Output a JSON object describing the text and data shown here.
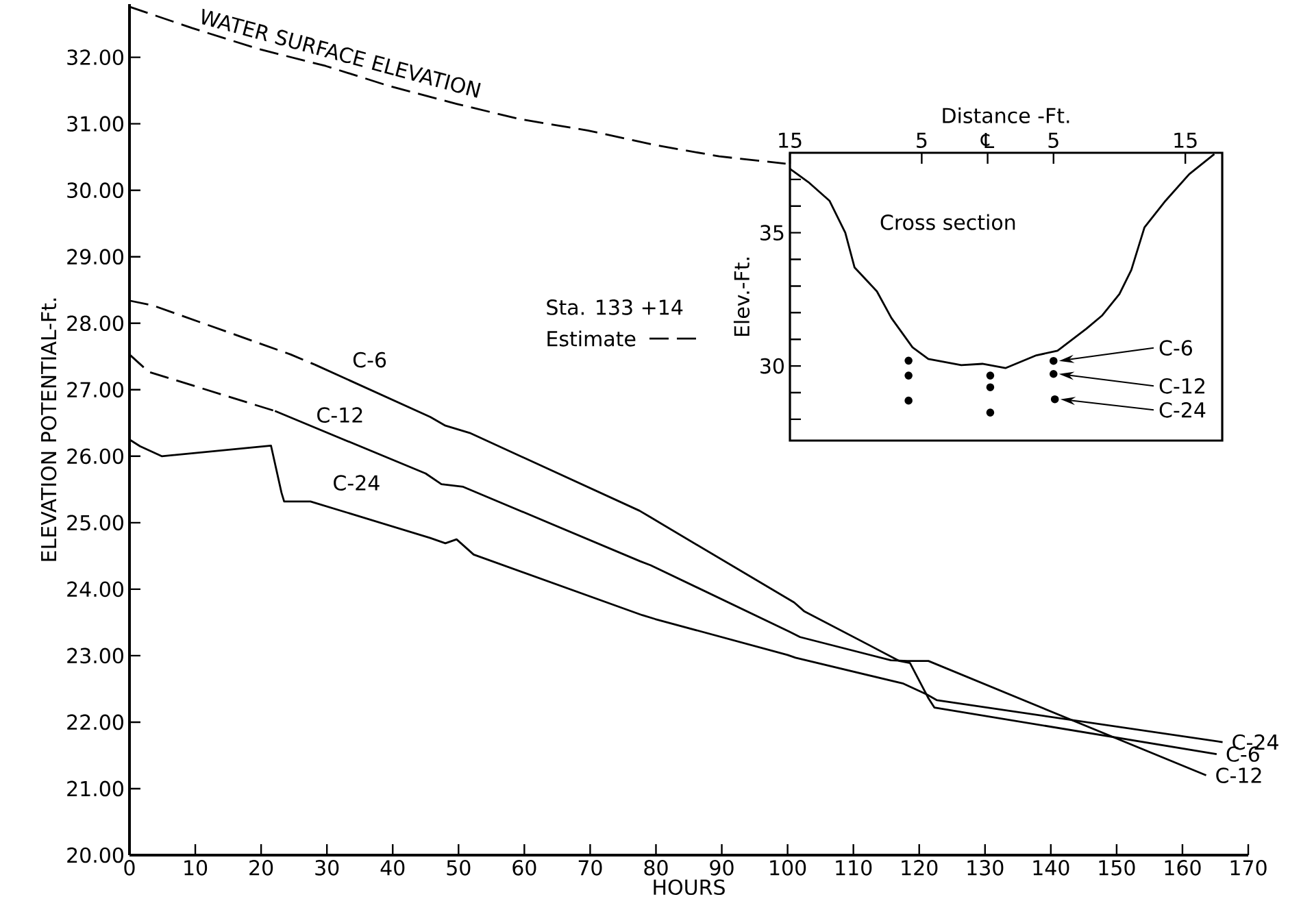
{
  "chart_data": [
    {
      "type": "line",
      "xlabel": "HOURS",
      "ylabel": "ELEVATION POTENTIAL-Ft.",
      "xlim": [
        0,
        170
      ],
      "ylim": [
        20,
        32.8
      ],
      "xticks": [
        0,
        10,
        20,
        30,
        40,
        50,
        60,
        70,
        80,
        90,
        100,
        110,
        120,
        130,
        140,
        150,
        160,
        170
      ],
      "yticks": [
        {
          "value": 20,
          "label": "20.00"
        },
        {
          "value": 21,
          "label": "21.00"
        },
        {
          "value": 22,
          "label": "22.00"
        },
        {
          "value": 23,
          "label": "23.00"
        },
        {
          "value": 24,
          "label": "24.00"
        },
        {
          "value": 25,
          "label": "25.00"
        },
        {
          "value": 26,
          "label": "26.00"
        },
        {
          "value": 27,
          "label": "27.00"
        },
        {
          "value": 28,
          "label": "28.00"
        },
        {
          "value": 29,
          "label": "29.00"
        },
        {
          "value": 30,
          "label": "30.00"
        },
        {
          "value": 31,
          "label": "31.00"
        },
        {
          "value": 32,
          "label": "32.00"
        }
      ],
      "series": [
        {
          "name": "WATER SURFACE ELEVATION",
          "color": "#000000",
          "line_style": "dashed",
          "x": [
            0,
            9.5,
            19.8,
            29.8,
            39.4,
            49.7,
            59.3,
            69.6,
            79.9,
            89.6,
            99.7
          ],
          "values": [
            32.76,
            32.44,
            32.12,
            31.87,
            31.57,
            31.3,
            31.07,
            30.9,
            30.68,
            30.51,
            30.4
          ]
        },
        {
          "color": "#000000",
          "line_style": "dashed",
          "x": [
            0,
            3.5,
            24.5,
            28.1
          ],
          "values": [
            28.34,
            28.27,
            27.53,
            27.38
          ]
        },
        {
          "name": "C-6",
          "color": "#000000",
          "line_style": "solid",
          "x": [
            28.1,
            45.7,
            48.0,
            51.7,
            77.5,
            79.2,
            101.0,
            102.5,
            117.0,
            118.6,
            121.4,
            122.3,
            165.2
          ],
          "values": [
            27.38,
            26.59,
            26.46,
            26.35,
            25.18,
            25.08,
            23.8,
            23.67,
            22.92,
            22.89,
            22.36,
            22.22,
            21.52
          ]
        },
        {
          "color": "#000000",
          "line_style": "dashed",
          "x": [
            0,
            2.9,
            22.1
          ],
          "values": [
            27.53,
            27.27,
            26.68
          ]
        },
        {
          "name": "C-12",
          "color": "#000000",
          "line_style": "solid",
          "x": [
            22.1,
            45.0,
            47.4,
            50.7,
            77.6,
            79.2,
            100.3,
            101.9,
            115.7,
            118.2,
            121.4,
            163.6
          ],
          "values": [
            26.68,
            25.74,
            25.58,
            25.54,
            24.42,
            24.36,
            23.36,
            23.28,
            22.93,
            22.92,
            22.92,
            21.2
          ]
        },
        {
          "name": "C-24",
          "color": "#000000",
          "line_style": "solid",
          "x": [
            0,
            1.6,
            4.9,
            21.5,
            23.1,
            23.5,
            27.5,
            45.7,
            48.0,
            49.7,
            52.3,
            77.9,
            79.9,
            100.0,
            101.2,
            117.6,
            121.1,
            122.7,
            166.1
          ],
          "values": [
            26.25,
            26.15,
            26.0,
            26.16,
            25.45,
            25.32,
            25.32,
            24.77,
            24.69,
            24.75,
            24.52,
            23.61,
            23.55,
            23.01,
            22.97,
            22.58,
            22.42,
            22.33,
            21.7
          ]
        }
      ],
      "annotations": [
        "Sta. 133 +14",
        "Estimate",
        {
          "text": "C-24",
          "x": 166.1,
          "y": 21.7
        },
        {
          "text": "C-6",
          "x": 165.2,
          "y": 21.52
        },
        {
          "text": "C-12",
          "x": 163.6,
          "y": 21.2
        }
      ]
    },
    {
      "type": "line",
      "xlabel": "Distance -Ft.",
      "ylabel": "Elev.-Ft.",
      "xlim": [
        -15,
        17.8
      ],
      "ylim": [
        27.2,
        38
      ],
      "xticks": [
        {
          "value": -15,
          "label": "15"
        },
        {
          "value": -5,
          "label": "5"
        },
        {
          "value": 0,
          "label": "℄"
        },
        {
          "value": 5,
          "label": "5"
        },
        {
          "value": 15,
          "label": "15"
        }
      ],
      "yticks": [
        {
          "value": 28,
          "label": null
        },
        {
          "value": 29,
          "label": null
        },
        30,
        {
          "value": 31,
          "label": null
        },
        {
          "value": 32,
          "label": null
        },
        {
          "value": 33,
          "label": null
        },
        {
          "value": 34,
          "label": null
        },
        35,
        {
          "value": 36,
          "label": null
        },
        {
          "value": 37,
          "label": null
        }
      ],
      "series": [
        {
          "color": "#000000",
          "line_style": "solid",
          "x": [
            -15,
            -13.6,
            -12.0,
            -10.8,
            -10.1,
            -8.4,
            -7.3,
            -5.7,
            -4.5,
            -2.0,
            -0.4,
            1.35,
            3.7,
            5.3,
            7.5,
            8.7,
            10.0,
            10.9,
            11.9,
            13.5,
            15.3,
            17.2
          ],
          "values": [
            37.4,
            36.9,
            36.2,
            35.0,
            33.7,
            32.8,
            31.8,
            30.7,
            30.26,
            30.03,
            30.08,
            29.92,
            30.4,
            30.57,
            31.4,
            31.9,
            32.7,
            33.6,
            35.2,
            36.2,
            37.2,
            37.95
          ]
        },
        {
          "type": "scatter",
          "color": "#000000",
          "marker": "circle",
          "x": [
            -6.0,
            -6.0,
            -6.0,
            0.2,
            0.2,
            0.2,
            5.0,
            5.0,
            5.1
          ],
          "values": [
            30.2,
            29.64,
            28.7,
            29.64,
            29.2,
            28.25,
            30.19,
            29.7,
            28.75
          ]
        }
      ],
      "annotations": [
        "Cross section",
        "C-6",
        "C-12",
        "C-24"
      ]
    }
  ]
}
